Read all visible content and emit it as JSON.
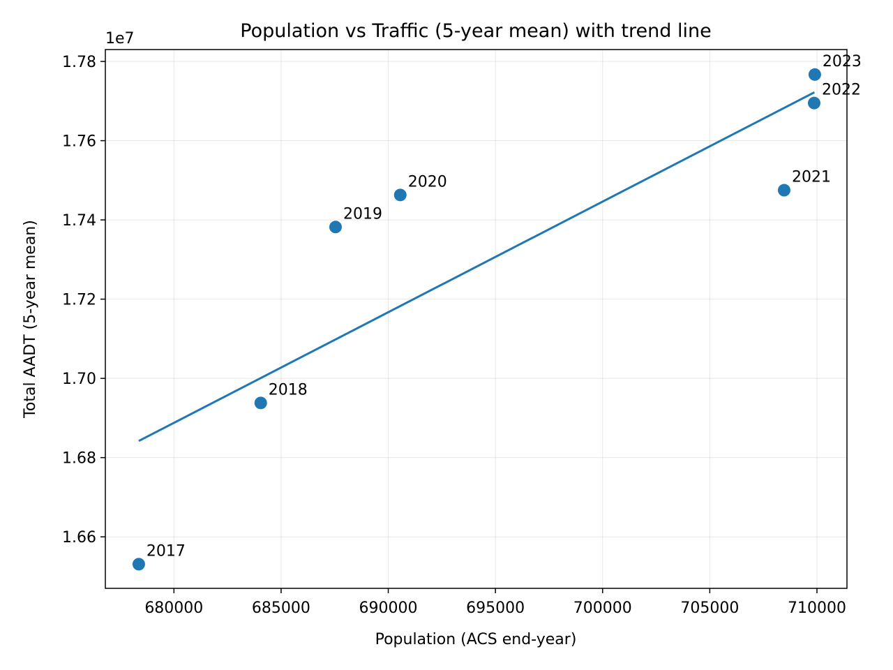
{
  "chart_data": {
    "type": "scatter",
    "title": "Population vs Traffic (5-year mean) with trend line",
    "xlabel": "Population (ACS end-year)",
    "ylabel": "Total AADT (5-year mean)",
    "y_offset_label": "1e7",
    "xlim": [
      676800,
      711400
    ],
    "ylim": [
      16470000,
      17830000
    ],
    "grid": true,
    "x_ticks": [
      680000,
      685000,
      690000,
      695000,
      700000,
      705000,
      710000
    ],
    "x_tick_labels": [
      "680000",
      "685000",
      "690000",
      "695000",
      "700000",
      "705000",
      "710000"
    ],
    "y_ticks": [
      16600000,
      16800000,
      17000000,
      17200000,
      17400000,
      17600000,
      17800000
    ],
    "y_tick_labels": [
      "1.66",
      "1.68",
      "1.70",
      "1.72",
      "1.74",
      "1.76",
      "1.78"
    ],
    "points": [
      {
        "label": "2017",
        "x": 678360,
        "y": 16531000
      },
      {
        "label": "2018",
        "x": 684050,
        "y": 16938000
      },
      {
        "label": "2019",
        "x": 687540,
        "y": 17382000
      },
      {
        "label": "2020",
        "x": 690560,
        "y": 17463000
      },
      {
        "label": "2021",
        "x": 708470,
        "y": 17475000
      },
      {
        "label": "2022",
        "x": 709870,
        "y": 17695000
      },
      {
        "label": "2023",
        "x": 709900,
        "y": 17767000
      }
    ],
    "trend_line": {
      "x": [
        678360,
        709880
      ],
      "y": [
        16842000,
        17722000
      ]
    },
    "colors": {
      "series": "#1f77b4"
    }
  }
}
